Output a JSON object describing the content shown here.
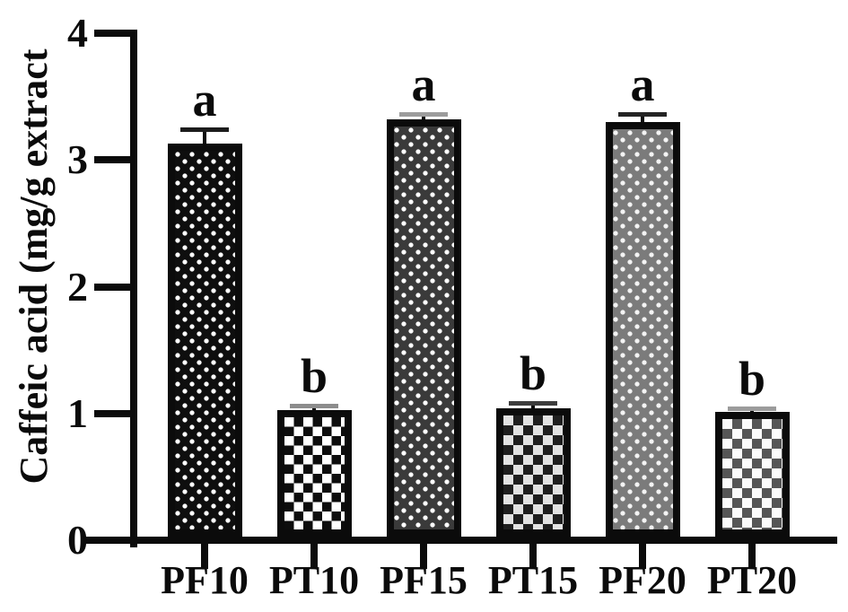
{
  "chart_data": {
    "type": "bar",
    "title": "",
    "ylabel": "Caffeic acid (mg/g extract",
    "xlabel": "",
    "categories": [
      "PF10",
      "PT10",
      "PF15",
      "PT15",
      "PF20",
      "PT20"
    ],
    "values": [
      3.13,
      1.03,
      3.32,
      1.04,
      3.3,
      1.01
    ],
    "errors": [
      0.11,
      0.03,
      0.04,
      0.04,
      0.06,
      0.03
    ],
    "sig_letters": [
      "a",
      "b",
      "a",
      "b",
      "a",
      "b"
    ],
    "patterns": [
      "black-dots",
      "bw-checker",
      "darkgray-dots",
      "dark-checker",
      "gray-dots",
      "gray-checker"
    ],
    "error_cap_colors": [
      "#1c1c1c",
      "#8c8c8c",
      "#9c9c9c",
      "#3d3d3d",
      "#242424",
      "#9c9c9c"
    ],
    "yticks": [
      0,
      1,
      2,
      3,
      4
    ],
    "ylim": [
      0,
      4
    ],
    "grid": false,
    "legend_position": "none",
    "axis_color": "#0b0b0b",
    "background_color": "#ffffff"
  }
}
